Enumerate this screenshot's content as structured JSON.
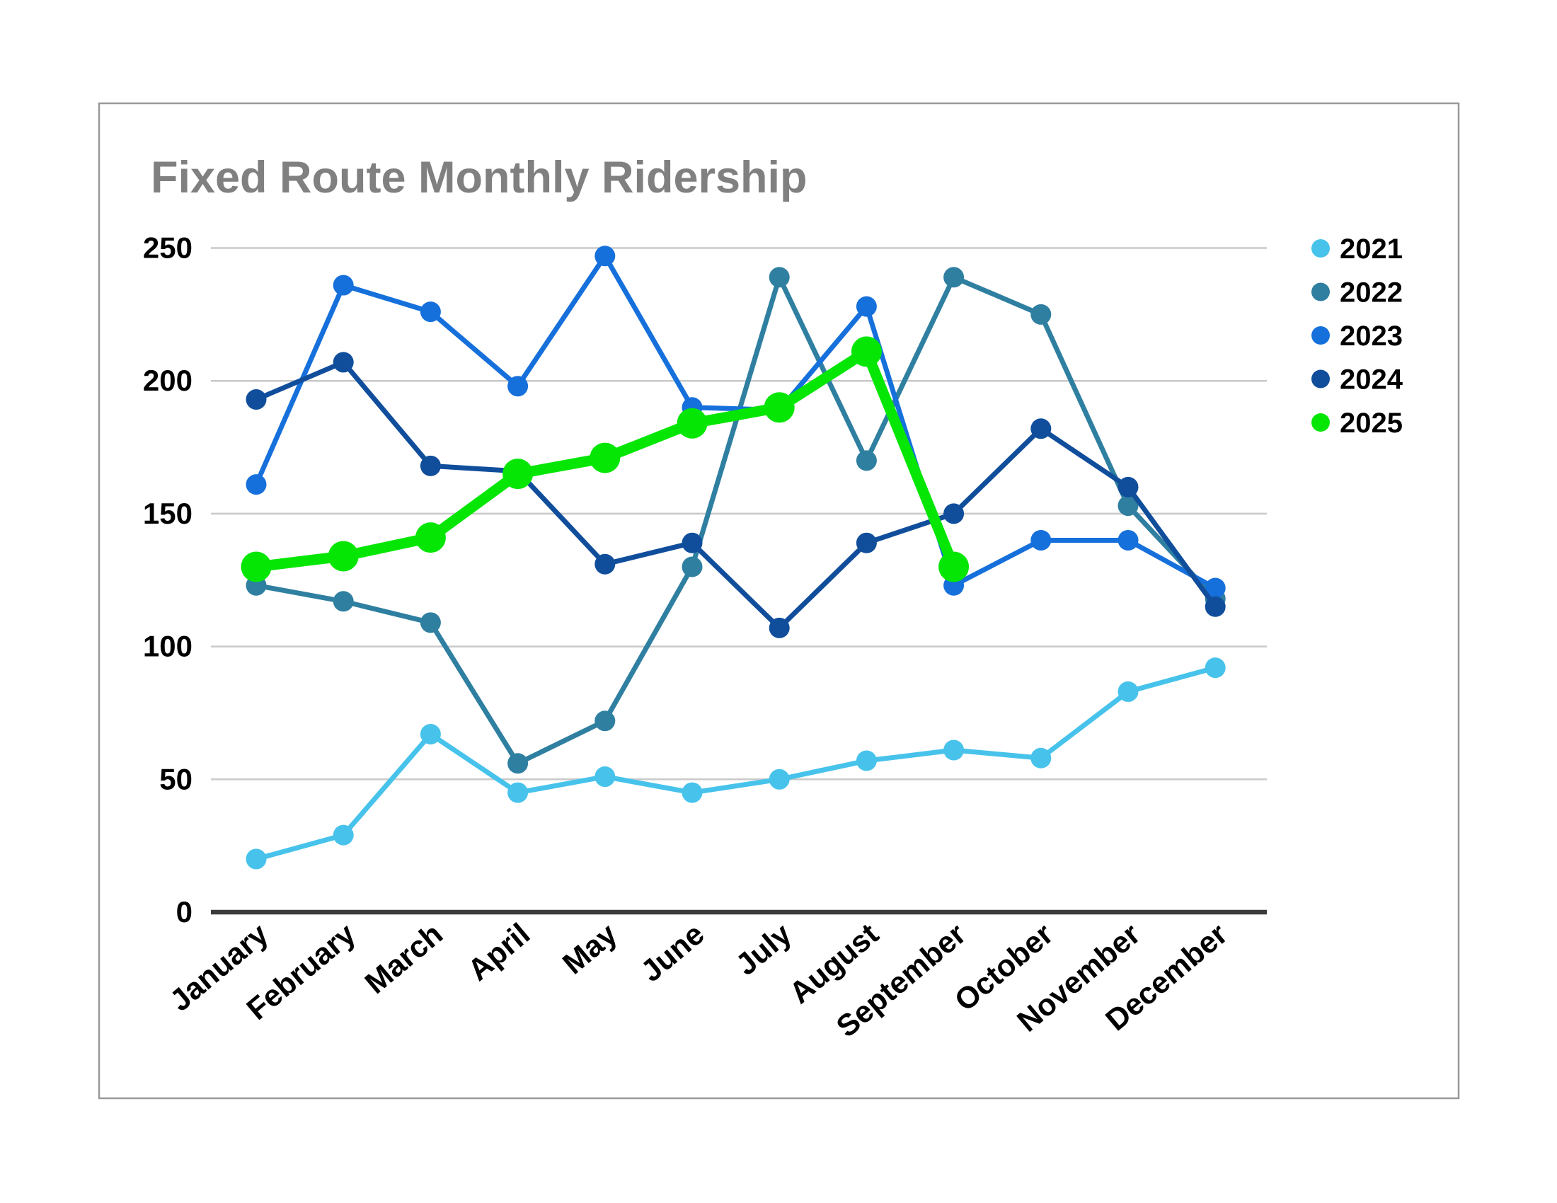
{
  "page": {
    "background_color": "#ffffff",
    "frame_border_color": "#999999"
  },
  "chart_data": {
    "type": "line",
    "title": "Fixed Route Monthly Ridership",
    "title_color": "#808080",
    "xlabel": "",
    "ylabel": "",
    "categories": [
      "January",
      "February",
      "March",
      "April",
      "May",
      "June",
      "July",
      "August",
      "September",
      "October",
      "November",
      "December"
    ],
    "y_ticks": [
      0,
      50,
      100,
      150,
      200,
      250
    ],
    "ylim": [
      0,
      250
    ],
    "grid": true,
    "gridline_color": "#c9c9c9",
    "axis_line_color": "#3b3b3b",
    "tick_label_color": "#000000",
    "legend_position": "right",
    "series": [
      {
        "name": "2021",
        "color": "#47C3EB",
        "line_width": 7,
        "point_radius": 14.5,
        "values": [
          20,
          29,
          67,
          45,
          51,
          45,
          50,
          57,
          61,
          58,
          83,
          92
        ]
      },
      {
        "name": "2022",
        "color": "#2F7FA1",
        "line_width": 7,
        "point_radius": 14.5,
        "values": [
          123,
          117,
          109,
          56,
          72,
          130,
          239,
          170,
          239,
          225,
          153,
          118
        ]
      },
      {
        "name": "2023",
        "color": "#1670DB",
        "line_width": 7,
        "point_radius": 14.5,
        "values": [
          161,
          236,
          226,
          198,
          247,
          190,
          189,
          228,
          123,
          140,
          140,
          122
        ]
      },
      {
        "name": "2024",
        "color": "#104E9B",
        "line_width": 7,
        "point_radius": 14.5,
        "values": [
          193,
          207,
          168,
          166,
          131,
          139,
          107,
          139,
          150,
          182,
          160,
          115
        ]
      },
      {
        "name": "2025",
        "color": "#05E605",
        "line_width": 15,
        "point_radius": 21.5,
        "values": [
          130,
          134,
          141,
          165,
          171,
          184,
          190,
          211,
          130,
          null,
          null,
          null
        ]
      }
    ]
  }
}
